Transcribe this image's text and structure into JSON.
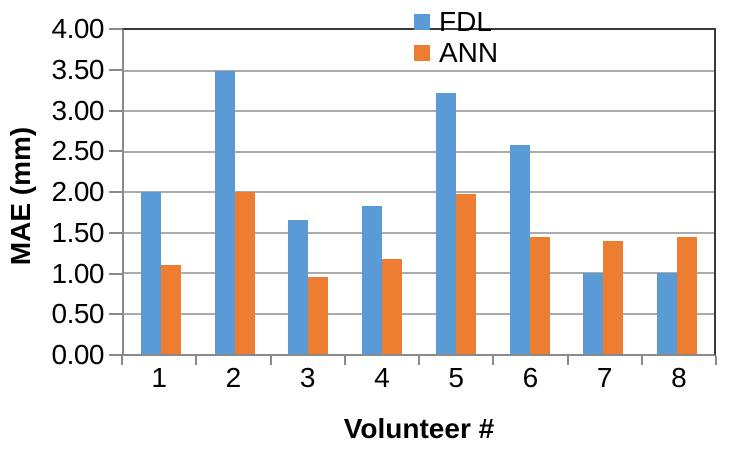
{
  "chart_data": {
    "type": "bar",
    "title": "",
    "xlabel": "Volunteer #",
    "ylabel": "MAE (mm)",
    "categories": [
      "1",
      "2",
      "3",
      "4",
      "5",
      "6",
      "7",
      "8"
    ],
    "series": [
      {
        "name": "FDL",
        "color": "#5B9BD5",
        "values": [
          2.0,
          3.5,
          1.65,
          1.83,
          3.22,
          2.58,
          1.0,
          1.0
        ]
      },
      {
        "name": "ANN",
        "color": "#ED7D31",
        "values": [
          1.1,
          2.0,
          0.95,
          1.17,
          1.97,
          1.45,
          1.4,
          1.45
        ]
      }
    ],
    "ylim": [
      0,
      4
    ],
    "ytick_step": 0.5,
    "ytick_labels": [
      "0.00",
      "0.50",
      "1.00",
      "1.50",
      "2.00",
      "2.50",
      "3.00",
      "3.50",
      "4.00"
    ],
    "grid": true,
    "legend_position": "top-right",
    "style": {
      "gridline_color": "#ABABAB",
      "axis_color": "#8A8A8A",
      "border_color": "#3A3A3A",
      "text_color": "#000000",
      "background": "#FFFFFF"
    }
  }
}
